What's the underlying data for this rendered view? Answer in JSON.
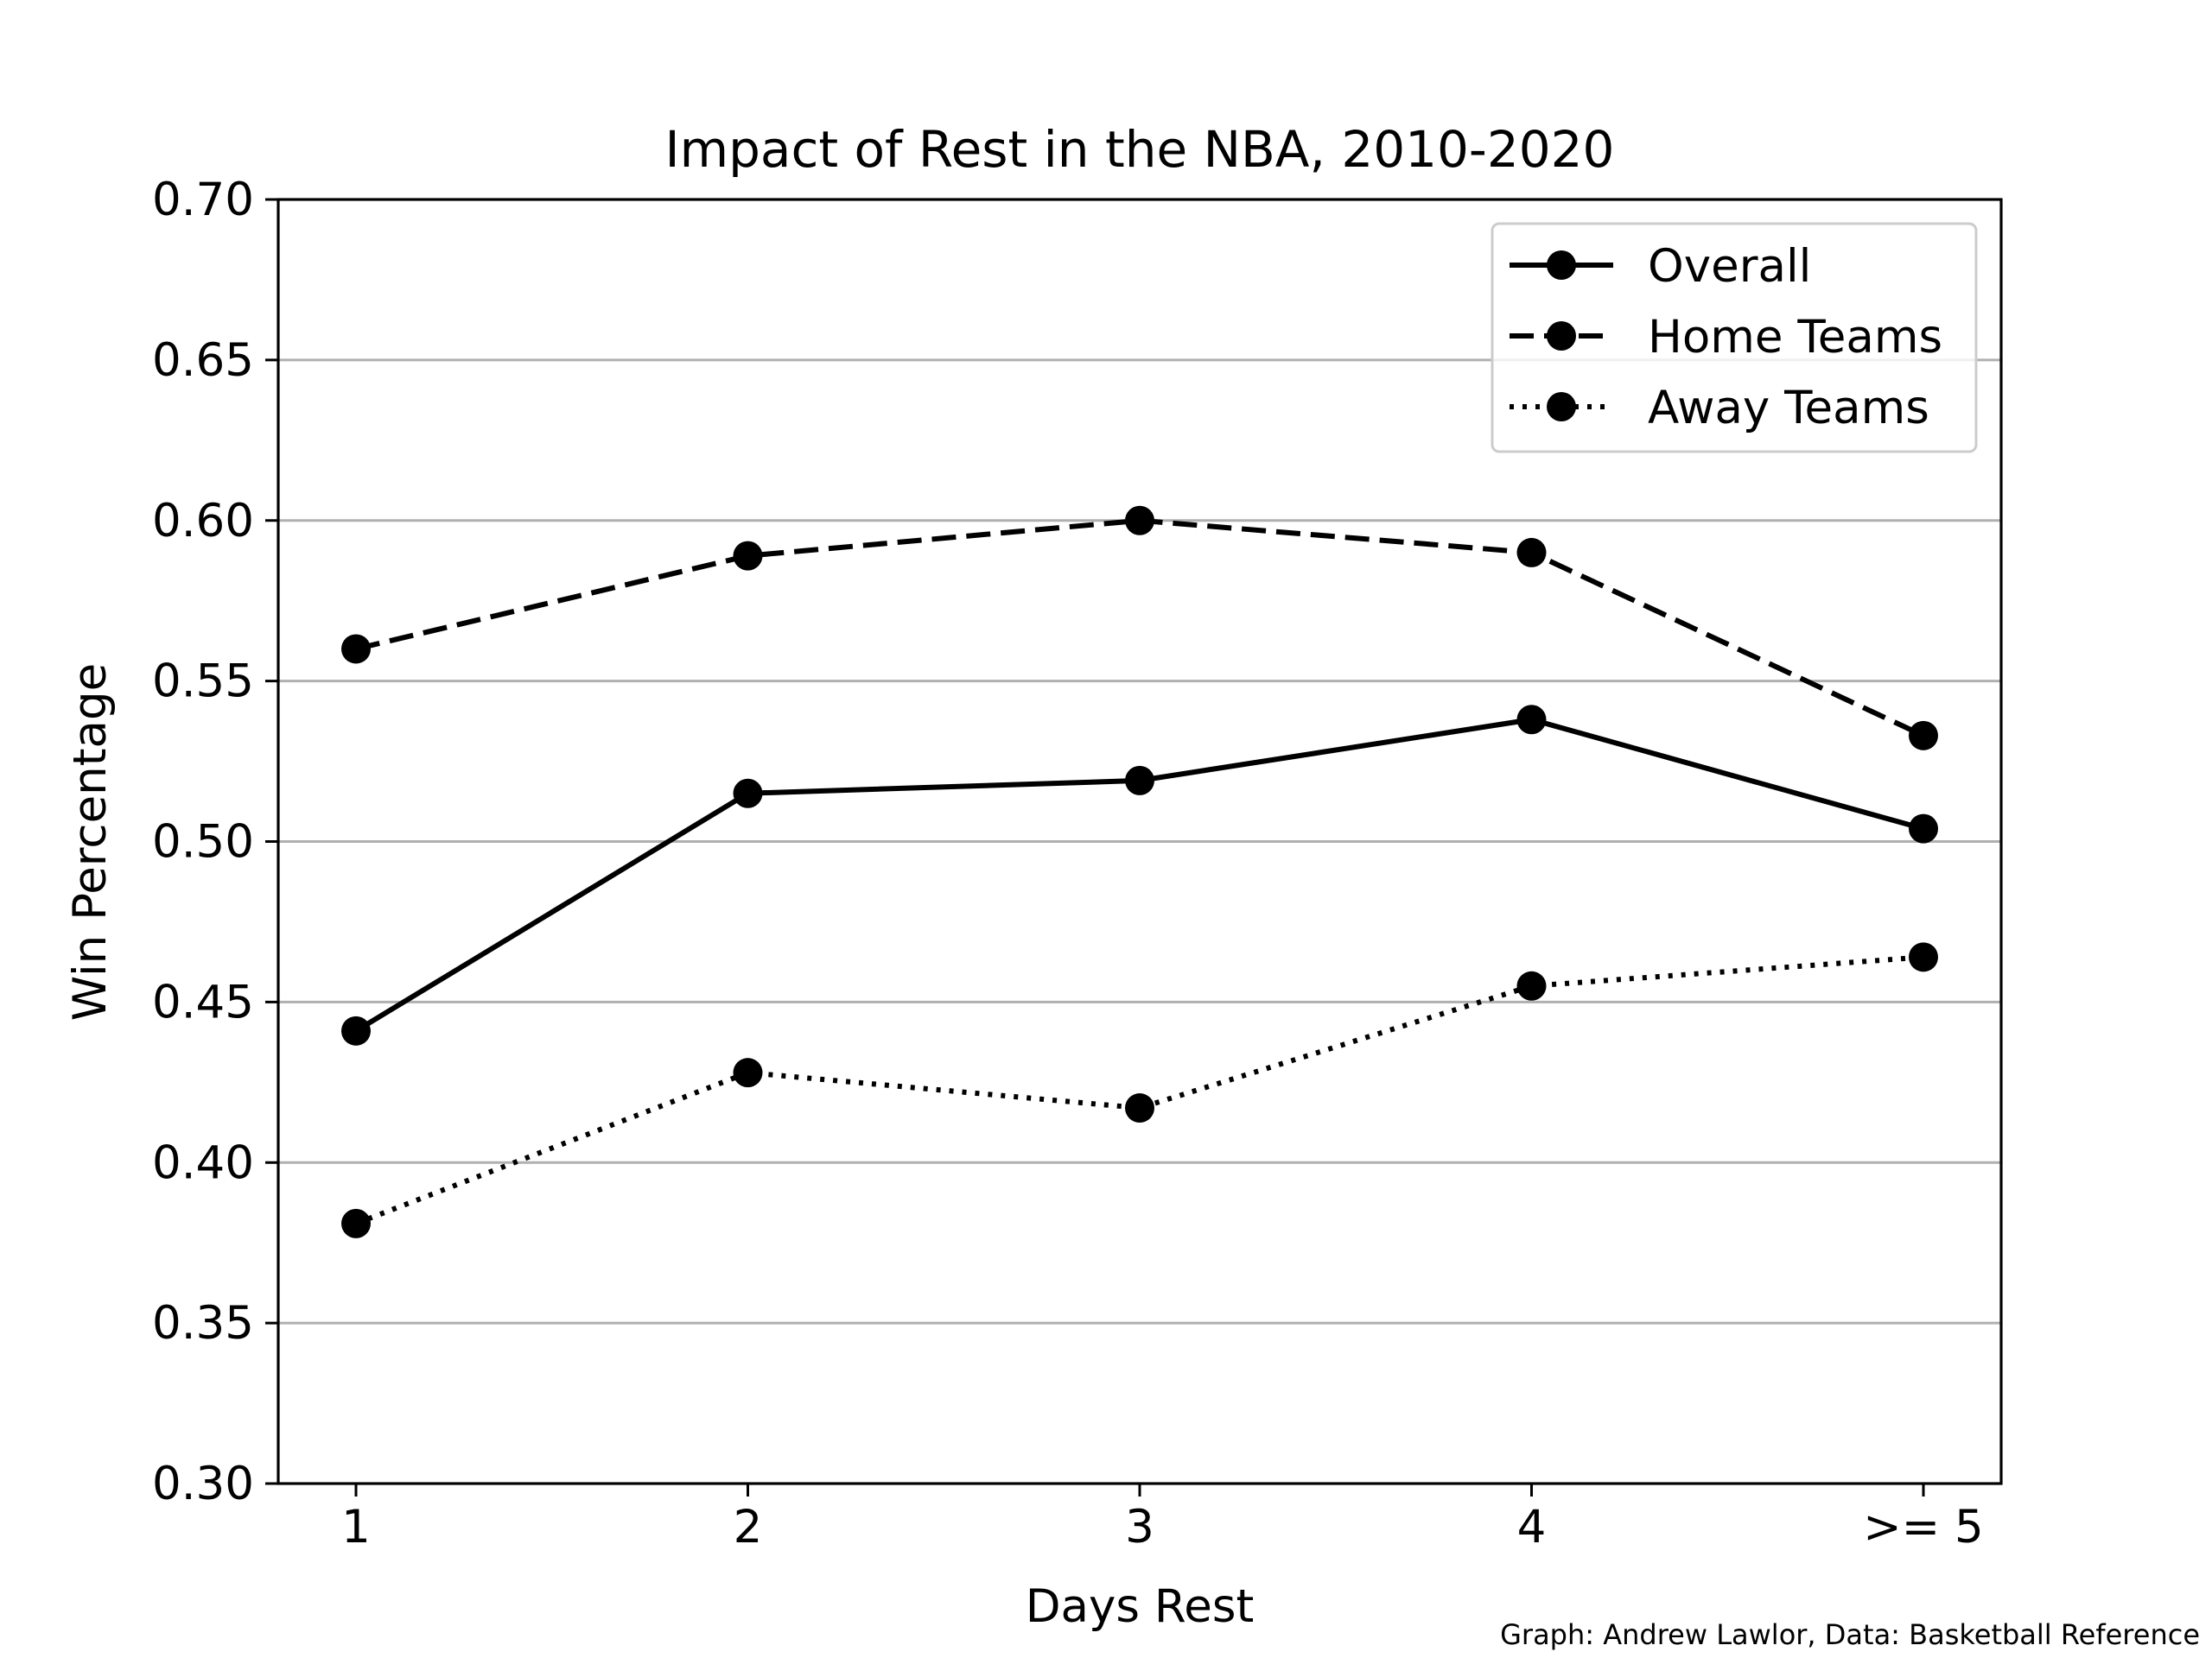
{
  "chart_data": {
    "type": "line",
    "title": "Impact of Rest in the NBA, 2010-2020",
    "xlabel": "Days Rest",
    "ylabel": "Win Percentage",
    "categories": [
      "1",
      "2",
      "3",
      "4",
      ">= 5"
    ],
    "ylim": [
      0.3,
      0.7
    ],
    "yticks": [
      "0.30",
      "0.35",
      "0.40",
      "0.45",
      "0.50",
      "0.55",
      "0.60",
      "0.65",
      "0.70"
    ],
    "grid": "horizontal",
    "legend_position": "top-right",
    "series": [
      {
        "name": "Overall",
        "style": "solid",
        "color": "#000000",
        "values": [
          0.441,
          0.515,
          0.519,
          0.538,
          0.504
        ]
      },
      {
        "name": "Home Teams",
        "style": "dashed",
        "color": "#000000",
        "values": [
          0.56,
          0.589,
          0.6,
          0.59,
          0.533
        ]
      },
      {
        "name": "Away Teams",
        "style": "dotted",
        "color": "#000000",
        "values": [
          0.381,
          0.428,
          0.417,
          0.455,
          0.464
        ]
      }
    ],
    "annotation": "Graph: Andrew Lawlor, Data: Basketball Reference"
  }
}
